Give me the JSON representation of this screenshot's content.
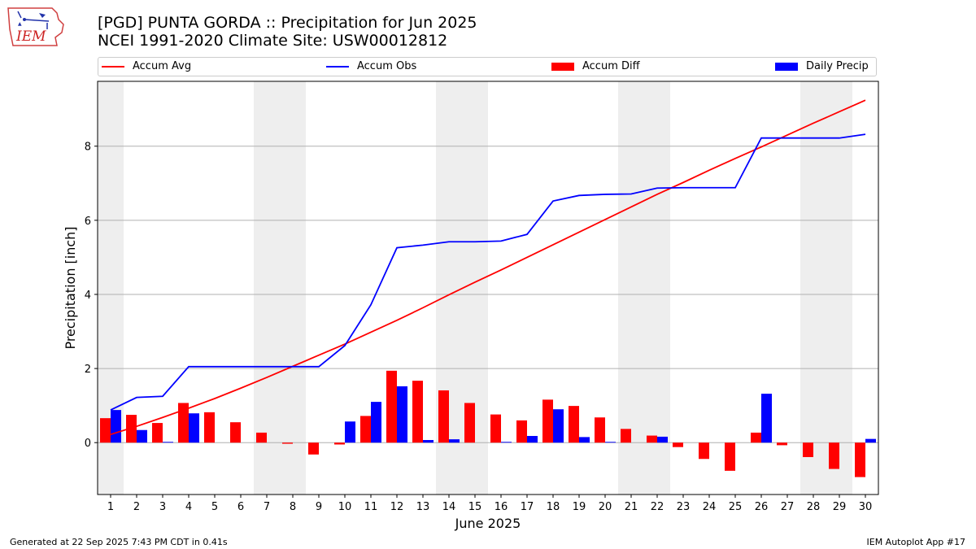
{
  "header": {
    "title": "[PGD] PUNTA GORDA :: Precipitation for Jun 2025",
    "subtitle": "NCEI 1991-2020 Climate Site: USW00012812",
    "logo_text": "IEM",
    "logo_icon": "iowa-map-logo-icon"
  },
  "footer": {
    "left": "Generated at 22 Sep 2025 7:43 PM CDT in 0.41s",
    "right": "IEM Autoplot App #17"
  },
  "colors": {
    "avg": "#ff0000",
    "obs": "#0000ff",
    "diff": "#ff0000",
    "daily": "#0000ff",
    "weekend_band": "#eeeeee",
    "grid": "#b0b0b0"
  },
  "chart_data": {
    "type": "bar",
    "xlabel": "June 2025",
    "ylabel": "Precipitation [inch]",
    "xlim": [
      0.5,
      30.5
    ],
    "ylim": [
      -1.4,
      9.75
    ],
    "yticks": [
      0,
      2,
      4,
      6,
      8
    ],
    "grid": "horizontal",
    "legend_placement": "top",
    "weekend_bands": [
      [
        0.5,
        1.5
      ],
      [
        6.5,
        8.5
      ],
      [
        13.5,
        15.5
      ],
      [
        20.5,
        22.5
      ],
      [
        27.5,
        29.5
      ]
    ],
    "categories": [
      "1",
      "2",
      "3",
      "4",
      "5",
      "6",
      "7",
      "8",
      "9",
      "10",
      "11",
      "12",
      "13",
      "14",
      "15",
      "16",
      "17",
      "18",
      "19",
      "20",
      "21",
      "22",
      "23",
      "24",
      "25",
      "26",
      "27",
      "28",
      "29",
      "30"
    ],
    "series": [
      {
        "name": "Accum Avg",
        "kind": "line",
        "values": [
          0.22,
          0.44,
          0.68,
          0.93,
          1.19,
          1.47,
          1.76,
          2.06,
          2.36,
          2.66,
          2.98,
          3.3,
          3.64,
          3.99,
          4.33,
          4.66,
          5.0,
          5.34,
          5.68,
          6.02,
          6.36,
          6.7,
          7.02,
          7.35,
          7.67,
          7.98,
          8.3,
          8.62,
          8.93,
          9.24
        ]
      },
      {
        "name": "Accum Obs",
        "kind": "line",
        "values": [
          0.88,
          1.22,
          1.25,
          2.05,
          2.05,
          2.05,
          2.05,
          2.05,
          2.05,
          2.62,
          3.72,
          5.26,
          5.33,
          5.42,
          5.42,
          5.44,
          5.62,
          6.52,
          6.67,
          6.7,
          6.71,
          6.87,
          6.88,
          6.88,
          6.88,
          8.22,
          8.22,
          8.22,
          8.22,
          8.32
        ]
      },
      {
        "name": "Accum Diff",
        "kind": "bar",
        "values": [
          0.66,
          0.75,
          0.53,
          1.07,
          0.82,
          0.55,
          0.27,
          -0.03,
          -0.32,
          -0.05,
          0.72,
          1.94,
          1.67,
          1.41,
          1.07,
          0.76,
          0.6,
          1.16,
          0.99,
          0.68,
          0.37,
          0.19,
          -0.12,
          -0.44,
          -0.76,
          0.27,
          -0.07,
          -0.39,
          -0.71,
          -0.93
        ]
      },
      {
        "name": "Daily Precip",
        "kind": "bar",
        "values": [
          0.88,
          0.34,
          0.02,
          0.79,
          0.0,
          0.0,
          0.0,
          0.0,
          0.0,
          0.57,
          1.1,
          1.52,
          0.07,
          0.09,
          0.0,
          0.02,
          0.18,
          0.9,
          0.15,
          0.02,
          0.0,
          0.16,
          0.0,
          0.0,
          0.0,
          1.32,
          0.0,
          0.0,
          0.0,
          0.1
        ]
      }
    ]
  }
}
